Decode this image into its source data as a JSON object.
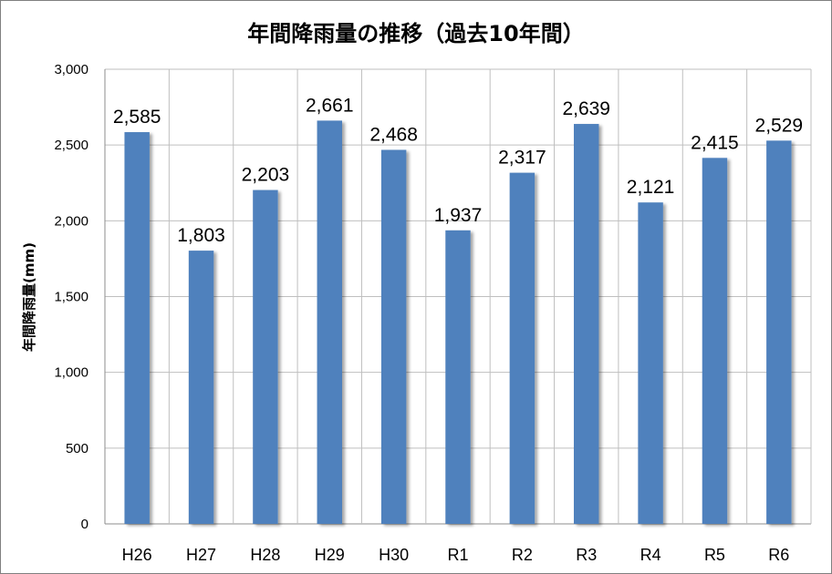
{
  "chart_data": {
    "type": "bar",
    "title": "年間降雨量の推移（過去10年間）",
    "xlabel": "",
    "ylabel": "年間降雨量(mm)",
    "categories": [
      "H26",
      "H27",
      "H28",
      "H29",
      "H30",
      "R1",
      "R2",
      "R3",
      "R4",
      "R5",
      "R6"
    ],
    "values": [
      2585,
      1803,
      2203,
      2661,
      2468,
      1937,
      2317,
      2639,
      2121,
      2415,
      2529
    ],
    "value_labels": [
      "2,585",
      "1,803",
      "2,203",
      "2,661",
      "2,468",
      "1,937",
      "2,317",
      "2,639",
      "2,121",
      "2,415",
      "2,529"
    ],
    "ylim": [
      0,
      3000
    ],
    "yticks": [
      0,
      500,
      1000,
      1500,
      2000,
      2500,
      3000
    ],
    "ytick_labels": [
      "0",
      "500",
      "1,000",
      "1,500",
      "2,000",
      "2,500",
      "3,000"
    ],
    "grid": true,
    "legend": "none",
    "bar_color": "#4f81bd"
  }
}
